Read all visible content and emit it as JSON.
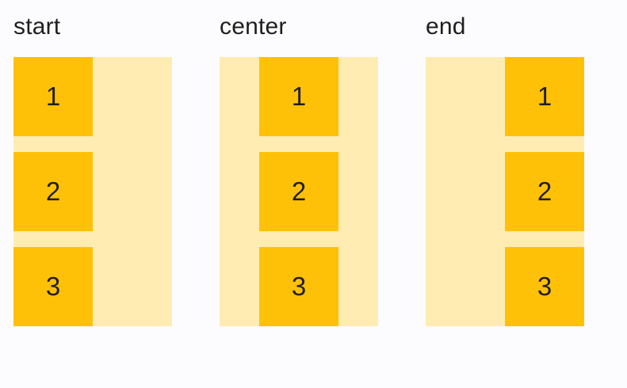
{
  "page": {
    "background": "#FCFCFE"
  },
  "colors": {
    "item": "#FFC107",
    "container": "#FFECB3",
    "text": "#1F1F1F"
  },
  "examples": [
    {
      "label": "start",
      "alignment": "start",
      "items": [
        "1",
        "2",
        "3"
      ]
    },
    {
      "label": "center",
      "alignment": "center",
      "items": [
        "1",
        "2",
        "3"
      ]
    },
    {
      "label": "end",
      "alignment": "end",
      "items": [
        "1",
        "2",
        "3"
      ]
    }
  ]
}
